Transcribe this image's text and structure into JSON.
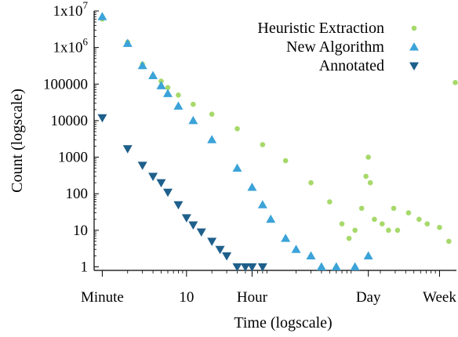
{
  "chart_data": {
    "type": "scatter",
    "xscale": "log",
    "yscale": "log",
    "xlim": [
      0.8,
      16000
    ],
    "ylim": [
      0.8,
      10000000
    ],
    "xlabel": "Time (logscale)",
    "ylabel": "Count (logscale)",
    "grid": false,
    "legend_position": "top-right",
    "x_ticks": [
      {
        "value": 1,
        "label": "Minute"
      },
      {
        "value": 10,
        "label": "10"
      },
      {
        "value": 60,
        "label": "Hour"
      },
      {
        "value": 1440,
        "label": "Day"
      },
      {
        "value": 10080,
        "label": "Week"
      }
    ],
    "y_ticks": [
      {
        "value": 1,
        "label": "1"
      },
      {
        "value": 10,
        "label": "10"
      },
      {
        "value": 100,
        "label": "100"
      },
      {
        "value": 1000,
        "label": "1000"
      },
      {
        "value": 10000,
        "label": "10000"
      },
      {
        "value": 100000,
        "label": "100000"
      },
      {
        "value": 1000000,
        "label": "1x10",
        "exponent": "6"
      },
      {
        "value": 10000000,
        "label": "1x10",
        "exponent": "7"
      }
    ],
    "series": [
      {
        "name": "Heuristic Extraction",
        "marker": "circle",
        "color": "#a6d96a",
        "points": [
          [
            1,
            6000000
          ],
          [
            2,
            1400000
          ],
          [
            3,
            350000
          ],
          [
            4,
            170000
          ],
          [
            5,
            120000
          ],
          [
            6,
            80000
          ],
          [
            8,
            50000
          ],
          [
            12,
            28000
          ],
          [
            20,
            15000
          ],
          [
            40,
            6000
          ],
          [
            80,
            2200
          ],
          [
            150,
            800
          ],
          [
            300,
            200
          ],
          [
            500,
            60
          ],
          [
            700,
            15
          ],
          [
            850,
            6
          ],
          [
            1000,
            10
          ],
          [
            1200,
            40
          ],
          [
            1350,
            300
          ],
          [
            1440,
            1000
          ],
          [
            1520,
            200
          ],
          [
            1700,
            20
          ],
          [
            2100,
            15
          ],
          [
            2500,
            10
          ],
          [
            2880,
            40
          ],
          [
            3200,
            10
          ],
          [
            4320,
            30
          ],
          [
            5760,
            20
          ],
          [
            7200,
            15
          ],
          [
            10080,
            12
          ],
          [
            13000,
            5
          ],
          [
            15500,
            110000
          ]
        ]
      },
      {
        "name": "New Algorithm",
        "marker": "triangle-up",
        "color": "#3ba3d8",
        "points": [
          [
            1,
            7000000
          ],
          [
            2,
            1300000
          ],
          [
            3,
            320000
          ],
          [
            4,
            170000
          ],
          [
            5,
            90000
          ],
          [
            6,
            55000
          ],
          [
            8,
            25000
          ],
          [
            12,
            10000
          ],
          [
            20,
            3000
          ],
          [
            40,
            500
          ],
          [
            60,
            150
          ],
          [
            80,
            50
          ],
          [
            100,
            20
          ],
          [
            150,
            6
          ],
          [
            200,
            3
          ],
          [
            300,
            2
          ],
          [
            400,
            1
          ],
          [
            600,
            1
          ],
          [
            1000,
            1
          ],
          [
            1440,
            2
          ]
        ]
      },
      {
        "name": "Annotated",
        "marker": "triangle-down",
        "color": "#1f5f8b",
        "points": [
          [
            1,
            12000
          ],
          [
            2,
            1700
          ],
          [
            3,
            600
          ],
          [
            4,
            300
          ],
          [
            5,
            200
          ],
          [
            6,
            110
          ],
          [
            8,
            50
          ],
          [
            10,
            22
          ],
          [
            12,
            14
          ],
          [
            15,
            9
          ],
          [
            20,
            5
          ],
          [
            25,
            3
          ],
          [
            30,
            2
          ],
          [
            40,
            1
          ],
          [
            50,
            1
          ],
          [
            60,
            1
          ],
          [
            80,
            1
          ]
        ]
      }
    ]
  }
}
